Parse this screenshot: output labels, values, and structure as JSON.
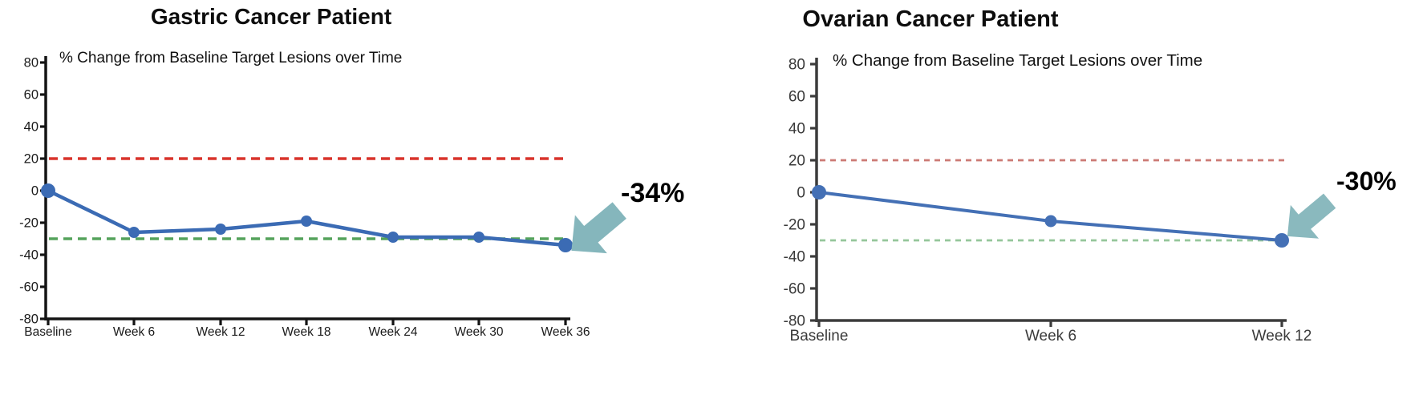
{
  "figure": {
    "background": "#ffffff",
    "description": "Two waterfall-style spider plots of tumor target lesion change over time"
  },
  "chart_data": [
    {
      "type": "line",
      "title": "Gastric Cancer Patient",
      "subtitle": "% Change from Baseline Target Lesions over Time",
      "categories": [
        "Baseline",
        "Week 6",
        "Week 12",
        "Week 18",
        "Week 24",
        "Week 30",
        "Week 36"
      ],
      "series": [
        {
          "name": "% change from baseline target lesions",
          "values": [
            0,
            -26,
            -24,
            -19,
            -29,
            -29,
            -34
          ]
        }
      ],
      "ylim": [
        -80,
        80
      ],
      "ytick_step": 20,
      "yticks": [
        80,
        60,
        40,
        20,
        0,
        -20,
        -40,
        -60,
        -80
      ],
      "grid": false,
      "legend": "none",
      "ref_lines": [
        {
          "value": 20,
          "style": "dashed",
          "color": "#d9342b",
          "meaning": "progressive-disease-threshold"
        },
        {
          "value": -30,
          "style": "dashed",
          "color": "#55a35c",
          "meaning": "partial-response-threshold"
        }
      ],
      "annotation": {
        "label": "-34%",
        "points_to": "Week 36",
        "arrow_icon": "thick-arrow-down-left"
      },
      "colors": {
        "line": "#3b6bb4",
        "marker": "#3b6bb4",
        "axis": "#141414",
        "tick_text": "#1a1a1a",
        "annotation_arrow": "#85b6bc",
        "annotation_text": "#000000"
      }
    },
    {
      "type": "line",
      "title": "Ovarian Cancer Patient",
      "subtitle": "% Change from Baseline Target Lesions over Time",
      "categories": [
        "Baseline",
        "Week 6",
        "Week 12"
      ],
      "series": [
        {
          "name": "% change from baseline target lesions",
          "values": [
            0,
            -18,
            -30
          ]
        }
      ],
      "ylim": [
        -80,
        80
      ],
      "ytick_step": 20,
      "yticks": [
        80,
        60,
        40,
        20,
        0,
        -20,
        -40,
        -60,
        -80
      ],
      "grid": false,
      "legend": "none",
      "ref_lines": [
        {
          "value": 20,
          "style": "dashed",
          "color": "#cc7b75",
          "meaning": "progressive-disease-threshold"
        },
        {
          "value": -30,
          "style": "dashed",
          "color": "#95c69b",
          "meaning": "partial-response-threshold"
        }
      ],
      "annotation": {
        "label": "-30%",
        "points_to": "Week 12",
        "arrow_icon": "thick-arrow-down-left"
      },
      "colors": {
        "line": "#4470b5",
        "marker": "#4470b5",
        "axis": "#3c3c3c",
        "tick_text": "#3a3a3a",
        "annotation_arrow": "#8ab9be",
        "annotation_text": "#000000"
      }
    }
  ]
}
